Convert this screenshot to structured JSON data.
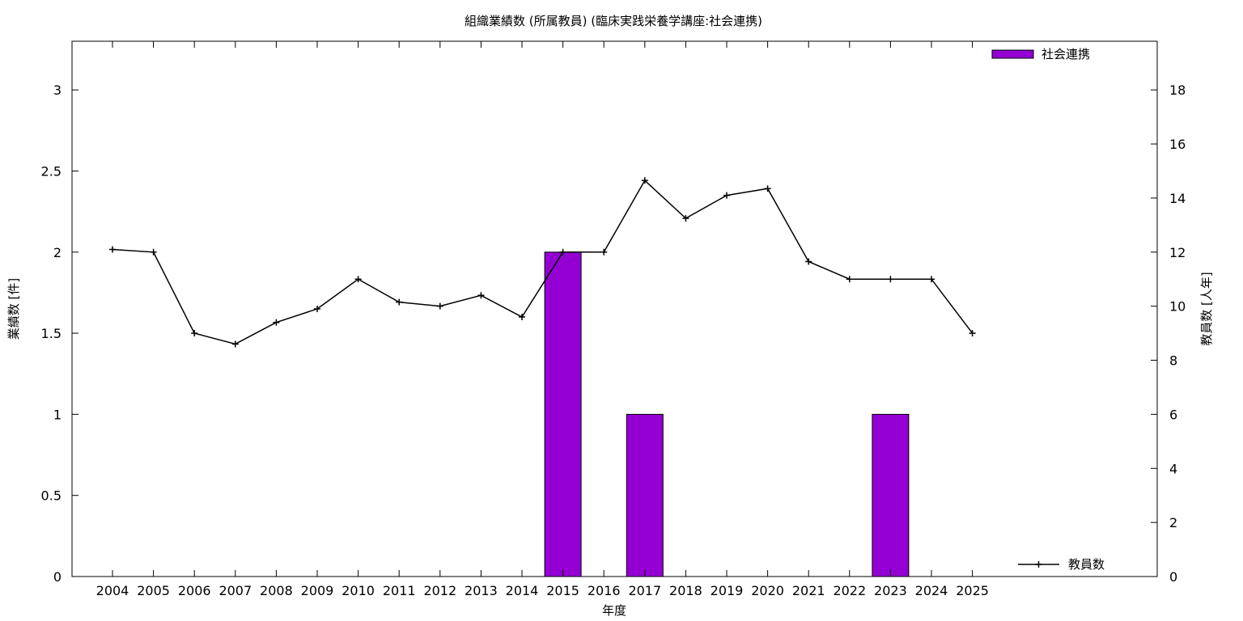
{
  "chart_data": {
    "type": "bar",
    "title": "組織業績数 (所属教員) (臨床実践栄養学講座:社会連携)",
    "xlabel": "年度",
    "ylabel": "業績数 [件]",
    "y2label": "教員数 [人年]",
    "categories": [
      "2004",
      "2005",
      "2006",
      "2007",
      "2008",
      "2009",
      "2010",
      "2011",
      "2012",
      "2013",
      "2014",
      "2015",
      "2016",
      "2017",
      "2018",
      "2019",
      "2020",
      "2021",
      "2022",
      "2023",
      "2024",
      "2025"
    ],
    "ylim": [
      0,
      3.3
    ],
    "y2lim": [
      0,
      19.8
    ],
    "yticks": [
      0,
      0.5,
      1,
      1.5,
      2,
      2.5,
      3
    ],
    "y2ticks": [
      0,
      2,
      4,
      6,
      8,
      10,
      12,
      14,
      16,
      18
    ],
    "grid": false,
    "series": [
      {
        "name": "社会連携",
        "type": "bar",
        "axis": "left",
        "color": "#9400d3",
        "values": [
          0,
          0,
          0,
          0,
          0,
          0,
          0,
          0,
          0,
          0,
          0,
          2,
          0,
          1,
          0,
          0,
          0,
          0,
          0,
          1,
          0,
          0
        ]
      },
      {
        "name": "教員数",
        "type": "line",
        "axis": "right",
        "color": "#000000",
        "values": [
          12.1,
          12.0,
          9.0,
          8.6,
          9.4,
          9.9,
          11.0,
          10.15,
          10.0,
          10.4,
          9.6,
          12.0,
          12.0,
          14.65,
          13.25,
          14.1,
          14.35,
          11.65,
          11.0,
          11.0,
          11.0,
          9.0
        ]
      }
    ],
    "legend": [
      {
        "label": "社会連携",
        "placement": "top-right"
      },
      {
        "label": "教員数",
        "placement": "bottom-right"
      }
    ]
  }
}
